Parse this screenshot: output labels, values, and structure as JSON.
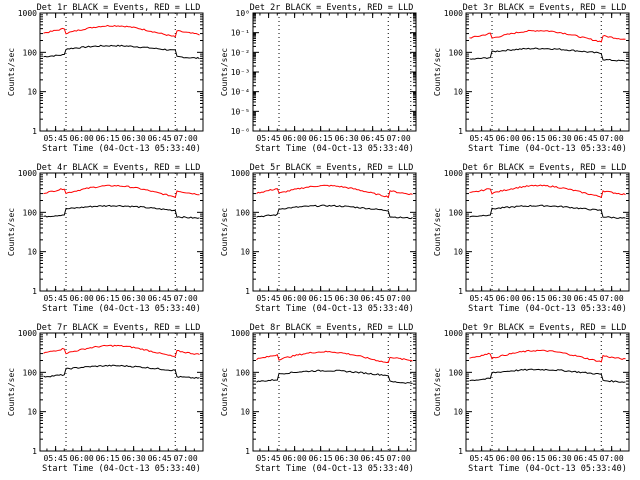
{
  "chart_data": [
    {
      "type": "line",
      "title": "Det 1r BLACK = Events, RED = LLD",
      "ylabel": "Counts/sec",
      "xlabel": "Start Time (04-Oct-13 05:33:40)",
      "yscale": "log",
      "ylim": [
        1,
        1000
      ],
      "xtick_labels": [
        "05:45",
        "06:00",
        "06:15",
        "06:30",
        "06:45",
        "07:00"
      ],
      "ytick_labels": [
        "1",
        "10",
        "100",
        "1000"
      ],
      "series": [
        {
          "color": "#000000",
          "values": []
        },
        {
          "color": "#ff0000",
          "values": []
        }
      ],
      "dashed_x": [
        "05:51",
        "06:54"
      ]
    },
    {
      "type": "line",
      "title": "Det 2r BLACK = Events, RED = LLD",
      "ylabel": "Counts/sec",
      "xlabel": "Start Time (04-Oct-13 05:33:40)",
      "yscale": "log",
      "ylim": [
        1e-06,
        1
      ],
      "xtick_labels": [
        "05:45",
        "06:00",
        "06:15",
        "06:30",
        "06:45",
        "07:00"
      ],
      "ytick_labels": [
        "10⁻⁶",
        "10⁻⁵",
        "10⁻⁴",
        "10⁻³",
        "10⁻²",
        "10⁻¹",
        "10⁰"
      ],
      "series": [],
      "dashed_x": [
        "05:51",
        "06:54",
        "07:07"
      ]
    },
    {
      "type": "line",
      "title": "Det 3r BLACK = Events, RED = LLD",
      "ylabel": "Counts/sec",
      "xlabel": "Start Time (04-Oct-13 05:33:40)",
      "yscale": "log",
      "ylim": [
        1,
        1000
      ],
      "xtick_labels": [
        "05:45",
        "06:00",
        "06:15",
        "06:30",
        "06:45",
        "07:00"
      ],
      "ytick_labels": [
        "1",
        "10",
        "100",
        "1000"
      ],
      "series": [
        {
          "color": "#000000",
          "values": []
        },
        {
          "color": "#ff0000",
          "values": []
        }
      ],
      "dashed_x": [
        "05:51",
        "06:54"
      ]
    },
    {
      "type": "line",
      "title": "Det 4r BLACK = Events, RED = LLD",
      "ylabel": "Counts/sec",
      "xlabel": "Start Time (04-Oct-13 05:33:40)",
      "yscale": "log",
      "ylim": [
        1,
        1000
      ],
      "xtick_labels": [
        "05:45",
        "06:00",
        "06:15",
        "06:30",
        "06:45",
        "07:00"
      ],
      "ytick_labels": [
        "1",
        "10",
        "100",
        "1000"
      ],
      "series": [
        {
          "color": "#000000",
          "values": []
        },
        {
          "color": "#ff0000",
          "values": []
        }
      ],
      "dashed_x": [
        "05:51",
        "06:54"
      ]
    },
    {
      "type": "line",
      "title": "Det 5r BLACK = Events, RED = LLD",
      "ylabel": "Counts/sec",
      "xlabel": "Start Time (04-Oct-13 05:33:40)",
      "yscale": "log",
      "ylim": [
        1,
        1000
      ],
      "xtick_labels": [
        "05:45",
        "06:00",
        "06:15",
        "06:30",
        "06:45",
        "07:00"
      ],
      "ytick_labels": [
        "1",
        "10",
        "100",
        "1000"
      ],
      "series": [
        {
          "color": "#000000",
          "values": []
        },
        {
          "color": "#ff0000",
          "values": []
        }
      ],
      "dashed_x": [
        "05:51",
        "06:54"
      ]
    },
    {
      "type": "line",
      "title": "Det 6r BLACK = Events, RED = LLD",
      "ylabel": "Counts/sec",
      "xlabel": "Start Time (04-Oct-13 05:33:40)",
      "yscale": "log",
      "ylim": [
        1,
        1000
      ],
      "xtick_labels": [
        "05:45",
        "06:00",
        "06:15",
        "06:30",
        "06:45",
        "07:00"
      ],
      "ytick_labels": [
        "1",
        "10",
        "100",
        "1000"
      ],
      "series": [
        {
          "color": "#000000",
          "values": []
        },
        {
          "color": "#ff0000",
          "values": []
        }
      ],
      "dashed_x": [
        "05:51",
        "06:54"
      ]
    },
    {
      "type": "line",
      "title": "Det 7r BLACK = Events, RED = LLD",
      "ylabel": "Counts/sec",
      "xlabel": "Start Time (04-Oct-13 05:33:40)",
      "yscale": "log",
      "ylim": [
        1,
        1000
      ],
      "xtick_labels": [
        "05:45",
        "06:00",
        "06:15",
        "06:30",
        "06:45",
        "07:00"
      ],
      "ytick_labels": [
        "1",
        "10",
        "100",
        "1000"
      ],
      "series": [
        {
          "color": "#000000",
          "values": []
        },
        {
          "color": "#ff0000",
          "values": []
        }
      ],
      "dashed_x": [
        "05:51",
        "06:54"
      ]
    },
    {
      "type": "line",
      "title": "Det 8r BLACK = Events, RED = LLD",
      "ylabel": "Counts/sec",
      "xlabel": "Start Time (04-Oct-13 05:33:40)",
      "yscale": "log",
      "ylim": [
        1,
        1000
      ],
      "xtick_labels": [
        "05:45",
        "06:00",
        "06:15",
        "06:30",
        "06:45",
        "07:00"
      ],
      "ytick_labels": [
        "1",
        "10",
        "100",
        "1000"
      ],
      "series": [
        {
          "color": "#000000",
          "values": []
        },
        {
          "color": "#ff0000",
          "values": []
        }
      ],
      "dashed_x": [
        "05:51",
        "06:54",
        "07:07"
      ]
    },
    {
      "type": "line",
      "title": "Det 9r BLACK = Events, RED = LLD",
      "ylabel": "Counts/sec",
      "xlabel": "Start Time (04-Oct-13 05:33:40)",
      "yscale": "log",
      "ylim": [
        1,
        1000
      ],
      "xtick_labels": [
        "05:45",
        "06:00",
        "06:15",
        "06:30",
        "06:45",
        "07:00"
      ],
      "ytick_labels": [
        "1",
        "10",
        "100",
        "1000"
      ],
      "series": [
        {
          "color": "#000000",
          "values": []
        },
        {
          "color": "#ff0000",
          "values": []
        }
      ],
      "dashed_x": [
        "05:51",
        "06:54"
      ]
    }
  ]
}
